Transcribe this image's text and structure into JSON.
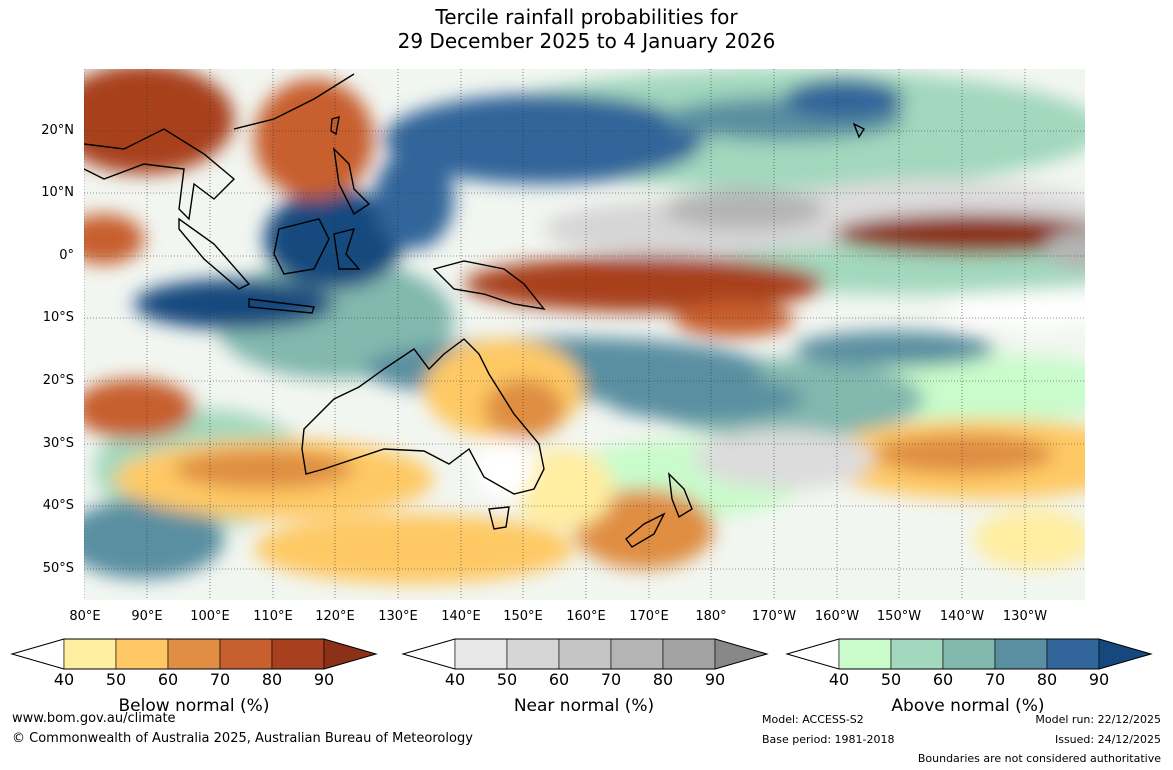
{
  "title": {
    "line1": "Tercile rainfall probabilities for",
    "line2": "29 December 2025 to 4 January 2026"
  },
  "latitude_labels": [
    "20°N",
    "10°N",
    "0°",
    "10°S",
    "20°S",
    "30°S",
    "40°S",
    "50°S"
  ],
  "longitude_labels": [
    "80°E",
    "90°E",
    "100°E",
    "110°E",
    "120°E",
    "130°E",
    "140°E",
    "150°E",
    "160°E",
    "170°E",
    "180°",
    "170°W",
    "160°W",
    "150°W",
    "140°W",
    "130°W"
  ],
  "legends": {
    "below": {
      "name": "Below normal (%)",
      "ticks": [
        "40",
        "50",
        "60",
        "70",
        "80",
        "90"
      ],
      "colors": [
        "#ffffff",
        "#ffeda0",
        "#fec965",
        "#df8e43",
        "#c75f2e",
        "#a8401f",
        "#8c3018"
      ]
    },
    "near": {
      "name": "Near normal (%)",
      "ticks": [
        "40",
        "50",
        "60",
        "70",
        "80",
        "90"
      ],
      "colors": [
        "#ffffff",
        "#e7e7e7",
        "#d6d6d6",
        "#c5c5c5",
        "#b4b4b4",
        "#a2a2a2",
        "#888888"
      ]
    },
    "above": {
      "name": "Above normal (%)",
      "ticks": [
        "40",
        "50",
        "60",
        "70",
        "80",
        "90"
      ],
      "colors": [
        "#ffffff",
        "#c9fbcb",
        "#a2d8bd",
        "#82b8ae",
        "#5a8fa1",
        "#32659a",
        "#15497e"
      ]
    }
  },
  "footer": {
    "website": "www.bom.gov.au/climate",
    "copyright": "© Commonwealth of Australia 2025, Australian Bureau of Meteorology",
    "model": "Model: ACCESS-S2",
    "base_period": "Base period: 1981-2018",
    "model_run": "Model run: 22/12/2025",
    "issued": "Issued: 24/12/2025",
    "disclaimer": "Boundaries are not considered authoritative"
  }
}
